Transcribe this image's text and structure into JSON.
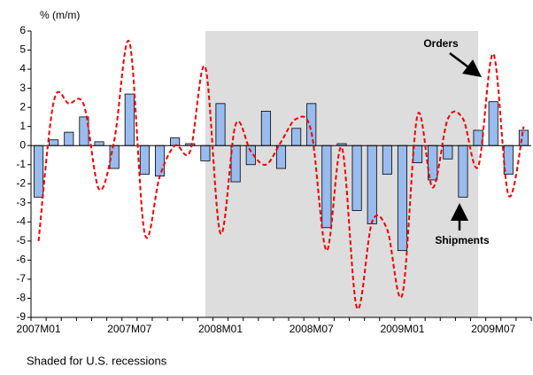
{
  "chart_data": {
    "type": "bar_line",
    "y_label": "% (m/m)",
    "note": "Shaded for U.S. recessions",
    "categories": [
      "2007M01",
      null,
      null,
      null,
      null,
      null,
      "2007M07",
      null,
      null,
      null,
      null,
      null,
      "2008M01",
      null,
      null,
      null,
      null,
      null,
      "2008M07",
      null,
      null,
      null,
      null,
      null,
      "2009M01",
      null,
      null,
      null,
      null,
      null,
      "2009M07",
      null,
      null
    ],
    "series": [
      {
        "name": "Shipments",
        "color": "#99bbee",
        "values": [
          -2.7,
          0.3,
          0.7,
          1.5,
          0.2,
          -1.2,
          2.7,
          -1.5,
          -1.6,
          0.4,
          0.1,
          -0.8,
          2.2,
          -1.9,
          -1.0,
          1.8,
          -1.2,
          0.9,
          2.2,
          -4.3,
          0.1,
          -3.4,
          -4.1,
          -1.5,
          -5.5,
          -0.9,
          -1.8,
          -0.7,
          -2.7,
          0.8,
          2.3,
          -1.5,
          0.8
        ]
      },
      {
        "name": "Orders",
        "color": "#ee0000",
        "values": [
          -5.0,
          2.3,
          2.2,
          2.1,
          -2.3,
          0.3,
          5.4,
          -4.6,
          -1.6,
          0.0,
          -0.3,
          4.1,
          -4.6,
          1.1,
          -0.3,
          -1.0,
          0.2,
          1.4,
          0.7,
          -5.5,
          -0.1,
          -8.5,
          -4.0,
          -4.4,
          -7.8,
          1.6,
          -2.2,
          1.4,
          1.4,
          -1.1,
          4.8,
          -2.6,
          1.0
        ]
      }
    ],
    "shade_range": [
      11,
      29
    ],
    "shade_color": "#dddddd",
    "ylim": [
      -9,
      6
    ],
    "yticks": [
      -9,
      -8,
      -7,
      -6,
      -5,
      -4,
      -3,
      -2,
      -1,
      0,
      1,
      2,
      3,
      4,
      5,
      6
    ]
  }
}
